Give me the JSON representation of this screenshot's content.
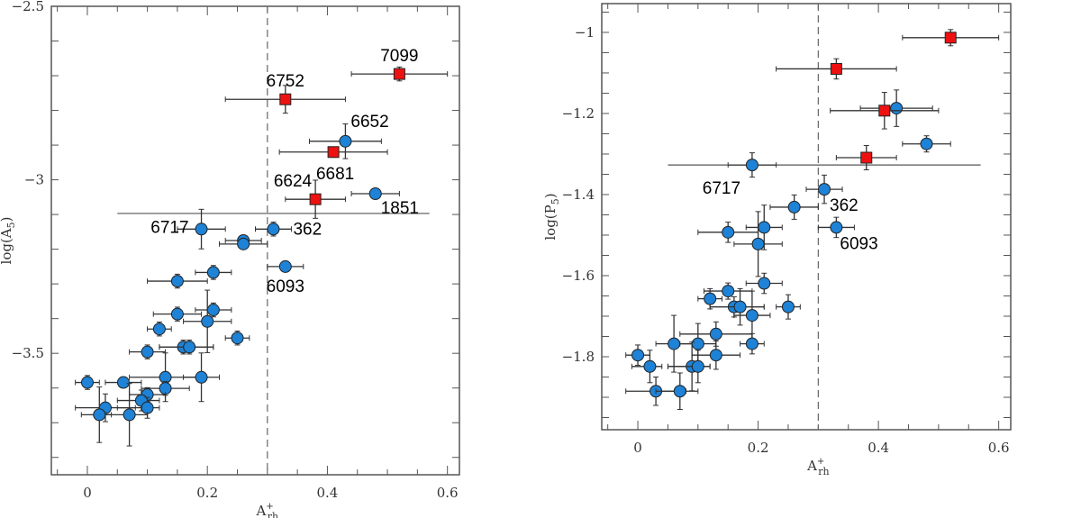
{
  "chart_data": [
    {
      "type": "scatter",
      "xlabel": {
        "main": "A",
        "sup": "+",
        "sub": "rh"
      },
      "ylabel": {
        "main": "log(A",
        "sub": "5",
        "end": ")"
      },
      "xlim": [
        -0.06,
        0.62
      ],
      "ylim": [
        -3.85,
        -2.5
      ],
      "xticks": [
        "0",
        "0.2",
        "0.4",
        "0.6"
      ],
      "yticks": [
        "-2.5",
        "-3",
        "-3.5"
      ],
      "vline_x": 0.3,
      "hline": {
        "y": -3.097,
        "x_from": 0.05,
        "x_to": 0.57
      },
      "colors": {
        "circle": "#1e82d6",
        "square": "#ee1111"
      },
      "squares": [
        {
          "x": 0.52,
          "y": -2.695,
          "xlo": 0.44,
          "xhi": 0.6,
          "yerr": 0.02,
          "label": "7099"
        },
        {
          "x": 0.33,
          "y": -2.768,
          "xlo": 0.23,
          "xhi": 0.43,
          "yerr": 0.04,
          "label": "6752"
        },
        {
          "x": 0.41,
          "y": -2.92,
          "xlo": 0.32,
          "xhi": 0.5,
          "yerr": 0.015,
          "label": "6681"
        },
        {
          "x": 0.38,
          "y": -3.056,
          "xlo": 0.33,
          "xhi": 0.43,
          "yerr": 0.055,
          "label": "6624"
        }
      ],
      "circles": [
        {
          "x": 0.43,
          "y": -2.889,
          "xlo": 0.37,
          "xhi": 0.49,
          "yerr": 0.05,
          "label": "6652"
        },
        {
          "x": 0.48,
          "y": -3.04,
          "xlo": 0.44,
          "xhi": 0.52,
          "yerr": 0.015,
          "label": "1851"
        },
        {
          "x": 0.19,
          "y": -3.142,
          "xlo": 0.15,
          "xhi": 0.23,
          "yerr": 0.057,
          "label": "6717"
        },
        {
          "x": 0.31,
          "y": -3.142,
          "xlo": 0.28,
          "xhi": 0.34,
          "yerr": 0.02,
          "label": "362"
        },
        {
          "x": 0.26,
          "y": -3.175,
          "xlo": 0.23,
          "xhi": 0.29,
          "yerr": 0.015
        },
        {
          "x": 0.26,
          "y": -3.185,
          "xlo": 0.22,
          "xhi": 0.3,
          "yerr": 0.015
        },
        {
          "x": 0.33,
          "y": -3.25,
          "xlo": 0.3,
          "xhi": 0.36,
          "yerr": 0.012,
          "label": "6093"
        },
        {
          "x": 0.21,
          "y": -3.267,
          "xlo": 0.18,
          "xhi": 0.24,
          "yerr": 0.02
        },
        {
          "x": 0.15,
          "y": -3.292,
          "xlo": 0.1,
          "xhi": 0.2,
          "yerr": 0.02
        },
        {
          "x": 0.15,
          "y": -3.387,
          "xlo": 0.11,
          "xhi": 0.19,
          "yerr": 0.02
        },
        {
          "x": 0.21,
          "y": -3.375,
          "xlo": 0.18,
          "xhi": 0.24,
          "yerr": 0.02
        },
        {
          "x": 0.2,
          "y": -3.408,
          "xlo": 0.16,
          "xhi": 0.24,
          "yerr": 0.09
        },
        {
          "x": 0.12,
          "y": -3.43,
          "xlo": 0.1,
          "xhi": 0.14,
          "yerr": 0.02
        },
        {
          "x": 0.25,
          "y": -3.456,
          "xlo": 0.23,
          "xhi": 0.27,
          "yerr": 0.02
        },
        {
          "x": 0.16,
          "y": -3.482,
          "xlo": 0.12,
          "xhi": 0.21,
          "yerr": 0.02
        },
        {
          "x": 0.17,
          "y": -3.482,
          "xlo": 0.12,
          "xhi": 0.21,
          "yerr": 0.02
        },
        {
          "x": 0.1,
          "y": -3.496,
          "xlo": 0.07,
          "xhi": 0.13,
          "yerr": 0.02
        },
        {
          "x": 0.13,
          "y": -3.569,
          "xlo": 0.07,
          "xhi": 0.19,
          "yerr": 0.07
        },
        {
          "x": 0.19,
          "y": -3.569,
          "xlo": 0.16,
          "xhi": 0.22,
          "yerr": 0.07
        },
        {
          "x": 0.0,
          "y": -3.584,
          "xlo": -0.02,
          "xhi": 0.02,
          "yerr": 0.02
        },
        {
          "x": 0.06,
          "y": -3.584,
          "xlo": 0.03,
          "xhi": 0.09,
          "yerr": 0.015
        },
        {
          "x": 0.13,
          "y": -3.601,
          "xlo": 0.09,
          "xhi": 0.17,
          "yerr": 0.02
        },
        {
          "x": 0.1,
          "y": -3.619,
          "xlo": 0.07,
          "xhi": 0.13,
          "yerr": 0.02
        },
        {
          "x": 0.09,
          "y": -3.636,
          "xlo": 0.05,
          "xhi": 0.12,
          "yerr": 0.03
        },
        {
          "x": 0.1,
          "y": -3.657,
          "xlo": 0.05,
          "xhi": 0.12,
          "yerr": 0.03
        },
        {
          "x": 0.03,
          "y": -3.657,
          "xlo": -0.02,
          "xhi": 0.08,
          "yerr": 0.04
        },
        {
          "x": 0.02,
          "y": -3.677,
          "xlo": -0.01,
          "xhi": 0.04,
          "yerr": 0.08
        },
        {
          "x": 0.07,
          "y": -3.677,
          "xlo": 0.03,
          "xhi": 0.1,
          "yerr": 0.09
        }
      ]
    },
    {
      "type": "scatter",
      "xlabel": {
        "main": "A",
        "sup": "+",
        "sub": "rh"
      },
      "ylabel": {
        "main": "log(P",
        "sub": "5",
        "end": ")"
      },
      "xlim": [
        -0.06,
        0.62
      ],
      "ylim": [
        -1.98,
        -0.929
      ],
      "xticks": [
        "0",
        "0.2",
        "0.4",
        "0.6"
      ],
      "yticks": [
        "-1",
        "-1.2",
        "-1.4",
        "-1.6",
        "-1.8"
      ],
      "vline_x": 0.3,
      "hline": {
        "y": -1.327,
        "x_from": 0.05,
        "x_to": 0.57
      },
      "colors": {
        "circle": "#1e82d6",
        "square": "#ee1111"
      },
      "squares": [
        {
          "x": 0.52,
          "y": -1.013,
          "xlo": 0.44,
          "xhi": 0.6,
          "yerr": 0.02
        },
        {
          "x": 0.33,
          "y": -1.09,
          "xlo": 0.23,
          "xhi": 0.43,
          "yerr": 0.025
        },
        {
          "x": 0.41,
          "y": -1.193,
          "xlo": 0.32,
          "xhi": 0.5,
          "yerr": 0.045
        },
        {
          "x": 0.38,
          "y": -1.309,
          "xlo": 0.33,
          "xhi": 0.43,
          "yerr": 0.03
        }
      ],
      "circles": [
        {
          "x": 0.43,
          "y": -1.187,
          "xlo": 0.37,
          "xhi": 0.49,
          "yerr": 0.045
        },
        {
          "x": 0.48,
          "y": -1.275,
          "xlo": 0.44,
          "xhi": 0.52,
          "yerr": 0.02
        },
        {
          "x": 0.19,
          "y": -1.327,
          "xlo": 0.15,
          "xhi": 0.23,
          "yerr": 0.03,
          "label": "6717"
        },
        {
          "x": 0.31,
          "y": -1.387,
          "xlo": 0.28,
          "xhi": 0.34,
          "yerr": 0.035,
          "label": "362"
        },
        {
          "x": 0.26,
          "y": -1.431,
          "xlo": 0.22,
          "xhi": 0.3,
          "yerr": 0.03
        },
        {
          "x": 0.33,
          "y": -1.481,
          "xlo": 0.3,
          "xhi": 0.36,
          "yerr": 0.025,
          "label": "6093"
        },
        {
          "x": 0.21,
          "y": -1.481,
          "xlo": 0.18,
          "xhi": 0.24,
          "yerr": 0.055
        },
        {
          "x": 0.15,
          "y": -1.493,
          "xlo": 0.1,
          "xhi": 0.2,
          "yerr": 0.025
        },
        {
          "x": 0.2,
          "y": -1.522,
          "xlo": 0.16,
          "xhi": 0.24,
          "yerr": 0.08
        },
        {
          "x": 0.21,
          "y": -1.619,
          "xlo": 0.18,
          "xhi": 0.24,
          "yerr": 0.025
        },
        {
          "x": 0.15,
          "y": -1.638,
          "xlo": 0.11,
          "xhi": 0.19,
          "yerr": 0.02
        },
        {
          "x": 0.12,
          "y": -1.657,
          "xlo": 0.1,
          "xhi": 0.14,
          "yerr": 0.025
        },
        {
          "x": 0.16,
          "y": -1.677,
          "xlo": 0.12,
          "xhi": 0.21,
          "yerr": 0.025
        },
        {
          "x": 0.17,
          "y": -1.677,
          "xlo": 0.12,
          "xhi": 0.21,
          "yerr": 0.045
        },
        {
          "x": 0.25,
          "y": -1.677,
          "xlo": 0.23,
          "xhi": 0.27,
          "yerr": 0.03
        },
        {
          "x": 0.19,
          "y": -1.698,
          "xlo": 0.16,
          "xhi": 0.22,
          "yerr": 0.06
        },
        {
          "x": 0.13,
          "y": -1.744,
          "xlo": 0.07,
          "xhi": 0.19,
          "yerr": 0.03
        },
        {
          "x": 0.06,
          "y": -1.768,
          "xlo": 0.03,
          "xhi": 0.09,
          "yerr": 0.07
        },
        {
          "x": 0.1,
          "y": -1.768,
          "xlo": 0.07,
          "xhi": 0.13,
          "yerr": 0.05
        },
        {
          "x": 0.19,
          "y": -1.768,
          "xlo": 0.17,
          "xhi": 0.21,
          "yerr": 0.025
        },
        {
          "x": 0.0,
          "y": -1.796,
          "xlo": -0.02,
          "xhi": 0.02,
          "yerr": 0.025
        },
        {
          "x": 0.13,
          "y": -1.796,
          "xlo": 0.09,
          "xhi": 0.17,
          "yerr": 0.035
        },
        {
          "x": 0.02,
          "y": -1.824,
          "xlo": -0.01,
          "xhi": 0.04,
          "yerr": 0.04
        },
        {
          "x": 0.09,
          "y": -1.824,
          "xlo": 0.05,
          "xhi": 0.12,
          "yerr": 0.06
        },
        {
          "x": 0.1,
          "y": -1.824,
          "xlo": 0.05,
          "xhi": 0.12,
          "yerr": 0.04
        },
        {
          "x": 0.03,
          "y": -1.885,
          "xlo": -0.02,
          "xhi": 0.08,
          "yerr": 0.035
        },
        {
          "x": 0.07,
          "y": -1.885,
          "xlo": 0.03,
          "xhi": 0.1,
          "yerr": 0.045
        }
      ]
    }
  ]
}
